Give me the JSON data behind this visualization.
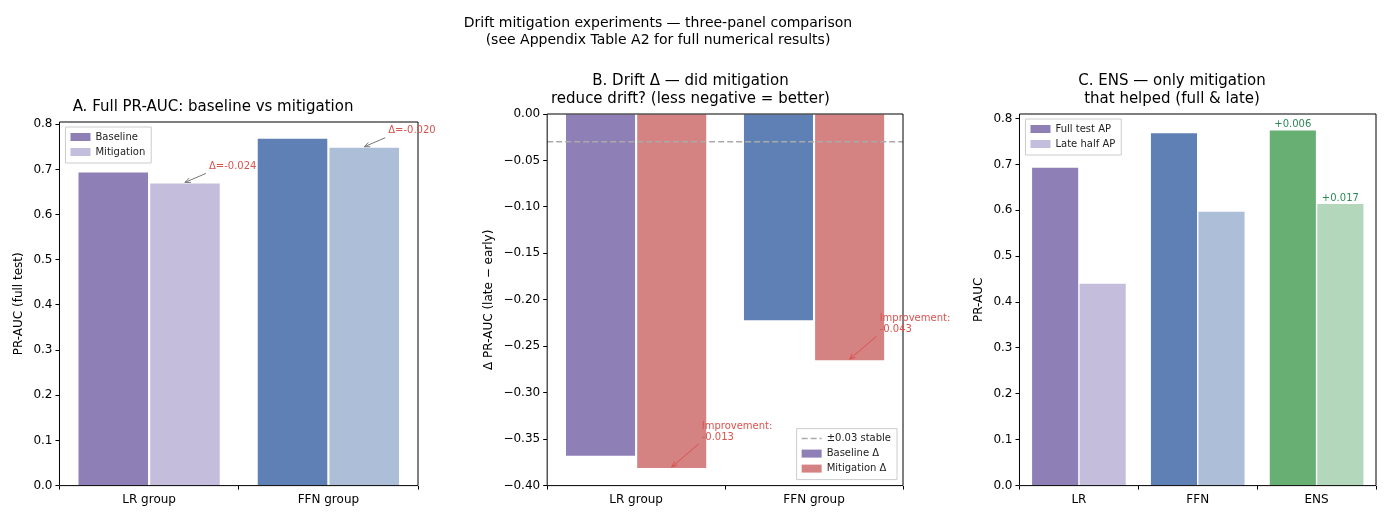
{
  "chart_data": [
    {
      "type": "bar",
      "title": "A. Full PR-AUC: baseline vs mitigation",
      "ylabel": "PR-AUC (full test)",
      "categories": [
        "LR group",
        "FFN group"
      ],
      "series": [
        {
          "name": "Baseline",
          "color": "#8e7fb6",
          "colors": [
            "#8e7fb6",
            "#5f80b5"
          ],
          "values": [
            0.693,
            0.768
          ]
        },
        {
          "name": "Mitigation",
          "color": "#c4bddc",
          "colors": [
            "#c4bddc",
            "#adbed9"
          ],
          "values": [
            0.669,
            0.748
          ]
        }
      ],
      "ylim": [
        0,
        0.805
      ],
      "yticks": [
        {
          "value": 0,
          "label": "0.0"
        },
        {
          "value": 0.1,
          "label": "0.1"
        },
        {
          "value": 0.2,
          "label": "0.2"
        },
        {
          "value": 0.3,
          "label": "0.3"
        },
        {
          "value": 0.4,
          "label": "0.4"
        },
        {
          "value": 0.5,
          "label": "0.5"
        },
        {
          "value": 0.6,
          "label": "0.6"
        },
        {
          "value": 0.7,
          "label": "0.7"
        },
        {
          "value": 0.8,
          "label": "0.8"
        }
      ],
      "annotations": [
        "Drift mitigation experiments — three-panel comparison\n(see Appendix Table A2 for full numerical results)",
        "Δ=-0.024",
        "Δ=-0.020"
      ],
      "legend": "top left",
      "grid": false
    },
    {
      "type": "bar",
      "title": "B. Drift Δ — did mitigation\nreduce drift? (less negative = better)",
      "ylabel": "Δ PR-AUC (late − early)",
      "categories": [
        "LR group",
        "FFN group"
      ],
      "series": [
        {
          "name": "Baseline Δ",
          "color": "#8e7fb6",
          "colors": [
            "#8e7fb6",
            "#5f80b5"
          ],
          "values": [
            -0.368,
            -0.222
          ]
        },
        {
          "name": "Mitigation Δ",
          "color": "#d58283",
          "colors": [
            "#d58283",
            "#d58283"
          ],
          "values": [
            -0.381,
            -0.265
          ]
        }
      ],
      "ylim": [
        -0.4,
        0
      ],
      "yticks": [
        {
          "value": -0.4,
          "label": "−0.40"
        },
        {
          "value": -0.35,
          "label": "−0.35"
        },
        {
          "value": -0.3,
          "label": "−0.30"
        },
        {
          "value": -0.25,
          "label": "−0.25"
        },
        {
          "value": -0.2,
          "label": "−0.20"
        },
        {
          "value": -0.15,
          "label": "−0.15"
        },
        {
          "value": -0.1,
          "label": "−0.10"
        },
        {
          "value": -0.05,
          "label": "−0.05"
        },
        {
          "value": 0,
          "label": "0.00"
        }
      ],
      "ref_lines": [
        {
          "axis": "y",
          "value": -0.03,
          "label": "±0.03 stable",
          "color": "#aaaaaa",
          "line_style": "dashed"
        }
      ],
      "annotations": [
        "Improvement:\n-0.013",
        "Improvement:\n-0.043"
      ],
      "legend": "bottom right",
      "grid": false
    },
    {
      "type": "bar",
      "title": "C. ENS — only mitigation\nthat helped (full & late)",
      "ylabel": "PR-AUC",
      "categories": [
        "LR",
        "FFN",
        "ENS"
      ],
      "series": [
        {
          "name": "Full test AP",
          "color": "#8e7fb6",
          "colors": [
            "#8e7fb6",
            "#5f80b5",
            "#68af74"
          ],
          "values": [
            0.693,
            0.768,
            0.774
          ]
        },
        {
          "name": "Late half AP",
          "color": "#c4bddc",
          "colors": [
            "#c4bddc",
            "#adbed9",
            "#b3d7bb"
          ],
          "values": [
            0.44,
            0.597,
            0.614
          ]
        }
      ],
      "ylim": [
        0,
        0.81
      ],
      "yticks": [
        {
          "value": 0,
          "label": "0.0"
        },
        {
          "value": 0.1,
          "label": "0.1"
        },
        {
          "value": 0.2,
          "label": "0.2"
        },
        {
          "value": 0.3,
          "label": "0.3"
        },
        {
          "value": 0.4,
          "label": "0.4"
        },
        {
          "value": 0.5,
          "label": "0.5"
        },
        {
          "value": 0.6,
          "label": "0.6"
        },
        {
          "value": 0.7,
          "label": "0.7"
        },
        {
          "value": 0.8,
          "label": "0.8"
        }
      ],
      "annotations": [
        {
          "text": "+0.006",
          "x": "ENS",
          "y": 0.774
        },
        {
          "text": "+0.017",
          "x": "ENS",
          "y": 0.614
        }
      ],
      "legend": "top left",
      "grid": false
    }
  ]
}
